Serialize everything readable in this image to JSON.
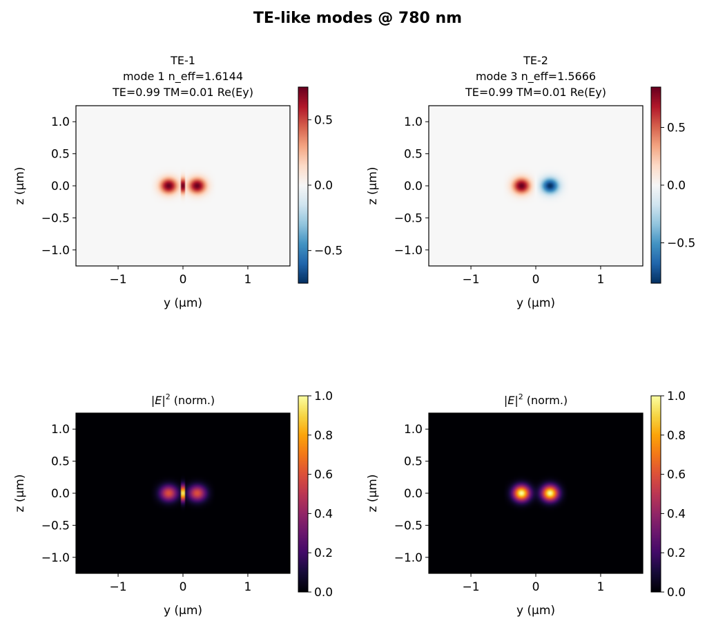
{
  "figure": {
    "title": "TE-like modes @ 780 nm"
  },
  "chart_data": [
    {
      "type": "heatmap",
      "title_lines": [
        "TE-1",
        "mode 1  n_eff=1.6144",
        "TE=0.99  TM=0.01  Re(Ey)"
      ],
      "xlabel": "y (µm)",
      "ylabel": "z (µm)",
      "xlim": [
        -1.65,
        1.65
      ],
      "ylim": [
        -1.25,
        1.25
      ],
      "xticks": [
        -1,
        0,
        1
      ],
      "xtick_labels": [
        "−1",
        "0",
        "1"
      ],
      "yticks": [
        1.0,
        0.5,
        0.0,
        -0.5,
        -1.0
      ],
      "ytick_labels": [
        "1.0",
        "0.5",
        "0.0",
        "−0.5",
        "−1.0"
      ],
      "colormap": "RdBu_r",
      "clim": [
        -0.75,
        0.75
      ],
      "cbar_ticks": [
        0.5,
        0.0,
        -0.5
      ],
      "cbar_tick_labels": [
        "0.5",
        "0.0",
        "−0.5"
      ],
      "field": {
        "kind": "TE1_Ey",
        "lobe_centers_y": [
          -0.22,
          0.22
        ],
        "peak": 0.75,
        "core_halfwidth_y": 0.45
      }
    },
    {
      "type": "heatmap",
      "title_lines": [
        "TE-2",
        "mode 3  n_eff=1.5666",
        "TE=0.99  TM=0.01  Re(Ey)"
      ],
      "xlabel": "y (µm)",
      "ylabel": "z (µm)",
      "xlim": [
        -1.65,
        1.65
      ],
      "ylim": [
        -1.25,
        1.25
      ],
      "xticks": [
        -1,
        0,
        1
      ],
      "xtick_labels": [
        "−1",
        "0",
        "1"
      ],
      "yticks": [
        1.0,
        0.5,
        0.0,
        -0.5,
        -1.0
      ],
      "ytick_labels": [
        "1.0",
        "0.5",
        "0.0",
        "−0.5",
        "−1.0"
      ],
      "colormap": "RdBu_r",
      "clim": [
        -0.85,
        0.85
      ],
      "cbar_ticks": [
        0.5,
        0.0,
        -0.5
      ],
      "cbar_tick_labels": [
        "0.5",
        "0.0",
        "−0.5"
      ],
      "field": {
        "kind": "TE2_Ey",
        "lobe_centers_y": [
          -0.22,
          0.22
        ],
        "peak": 0.85,
        "core_halfwidth_y": 0.45
      }
    },
    {
      "type": "heatmap",
      "title_lines": [
        "|E|² (norm.)"
      ],
      "title_rich": {
        "bar": "|",
        "E": "E",
        "bar2": "|",
        "sup": "2",
        "rest": " (norm.)"
      },
      "xlabel": "y (µm)",
      "ylabel": "z (µm)",
      "xlim": [
        -1.65,
        1.65
      ],
      "ylim": [
        -1.25,
        1.25
      ],
      "xticks": [
        -1,
        0,
        1
      ],
      "xtick_labels": [
        "−1",
        "0",
        "1"
      ],
      "yticks": [
        1.0,
        0.5,
        0.0,
        -0.5,
        -1.0
      ],
      "ytick_labels": [
        "1.0",
        "0.5",
        "0.0",
        "−0.5",
        "−1.0"
      ],
      "colormap": "inferno",
      "clim": [
        0.0,
        1.0
      ],
      "cbar_ticks": [
        1.0,
        0.8,
        0.6,
        0.4,
        0.2,
        0.0
      ],
      "cbar_tick_labels": [
        "1.0",
        "0.8",
        "0.6",
        "0.4",
        "0.2",
        "0.0"
      ],
      "field": {
        "kind": "TE1_I",
        "lobe_centers_y": [
          -0.22,
          0.22
        ],
        "peak": 1.0,
        "core_halfwidth_y": 0.45
      }
    },
    {
      "type": "heatmap",
      "title_lines": [
        "|E|² (norm.)"
      ],
      "title_rich": {
        "bar": "|",
        "E": "E",
        "bar2": "|",
        "sup": "2",
        "rest": " (norm.)"
      },
      "xlabel": "y (µm)",
      "ylabel": "z (µm)",
      "xlim": [
        -1.65,
        1.65
      ],
      "ylim": [
        -1.25,
        1.25
      ],
      "xticks": [
        -1,
        0,
        1
      ],
      "xtick_labels": [
        "−1",
        "0",
        "1"
      ],
      "yticks": [
        1.0,
        0.5,
        0.0,
        -0.5,
        -1.0
      ],
      "ytick_labels": [
        "1.0",
        "0.5",
        "0.0",
        "−0.5",
        "−1.0"
      ],
      "colormap": "inferno",
      "clim": [
        0.0,
        1.0
      ],
      "cbar_ticks": [
        1.0,
        0.8,
        0.6,
        0.4,
        0.2,
        0.0
      ],
      "cbar_tick_labels": [
        "1.0",
        "0.8",
        "0.6",
        "0.4",
        "0.2",
        "0.0"
      ],
      "field": {
        "kind": "TE2_I",
        "lobe_centers_y": [
          -0.22,
          0.22
        ],
        "peak": 1.0,
        "core_halfwidth_y": 0.45
      }
    }
  ]
}
